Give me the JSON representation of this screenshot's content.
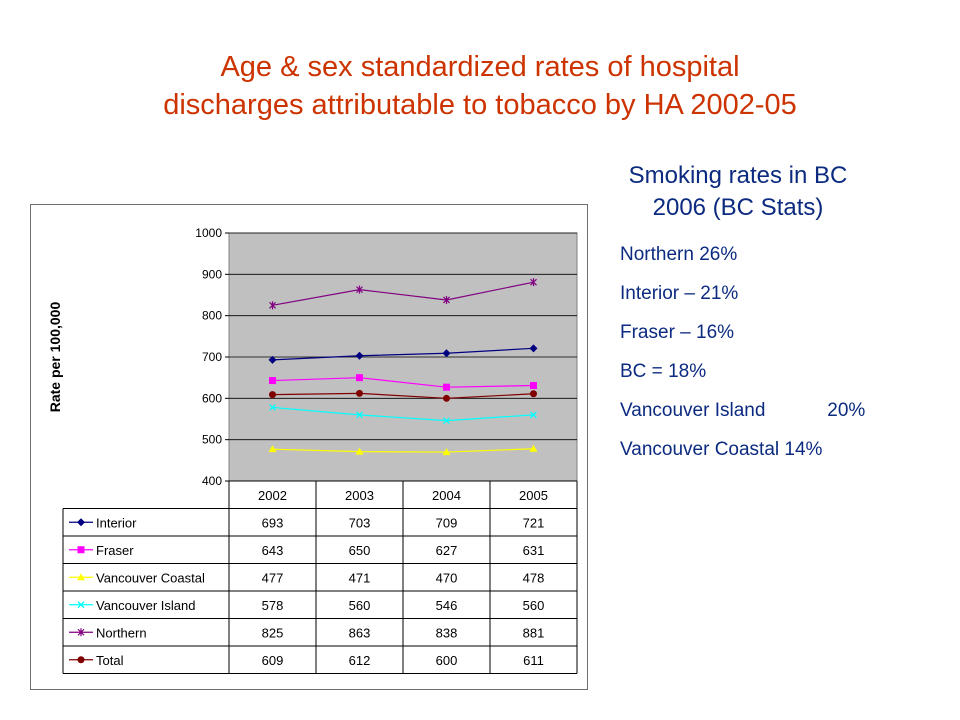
{
  "title": {
    "line1": "Age & sex standardized rates of hospital",
    "line2": "discharges attributable to tobacco by HA 2002-05"
  },
  "side_panel": {
    "heading_line1": "Smoking rates in BC",
    "heading_line2": "2006 (BC Stats)",
    "items": [
      {
        "name": "Northern",
        "value": "26%"
      },
      {
        "name": "Interior –",
        "value": "21%"
      },
      {
        "name": "Fraser –",
        "value": "16%"
      },
      {
        "name": "BC =",
        "value": "18%"
      },
      {
        "name": "Vancouver Island",
        "value": "20%"
      },
      {
        "name": "Vancouver Coastal",
        "value": "14%"
      }
    ]
  },
  "chart_data": {
    "type": "line",
    "title": "",
    "xlabel": "",
    "ylabel": "Rate per 100,000",
    "ylim": [
      400,
      1000
    ],
    "yticks": [
      400,
      500,
      600,
      700,
      800,
      900,
      1000
    ],
    "categories": [
      "2002",
      "2003",
      "2004",
      "2005"
    ],
    "grid": true,
    "legend": "data-table-below",
    "plot_background": "#c0c0c0",
    "series": [
      {
        "name": "Interior",
        "values": [
          693,
          703,
          709,
          721
        ],
        "color": "#000080",
        "marker": "diamond"
      },
      {
        "name": "Fraser",
        "values": [
          643,
          650,
          627,
          631
        ],
        "color": "#ff00ff",
        "marker": "square"
      },
      {
        "name": "Vancouver Coastal",
        "values": [
          477,
          471,
          470,
          478
        ],
        "color": "#ffff00",
        "marker": "triangle"
      },
      {
        "name": "Vancouver Island",
        "values": [
          578,
          560,
          546,
          560
        ],
        "color": "#00ffff",
        "marker": "x"
      },
      {
        "name": "Northern",
        "values": [
          825,
          863,
          838,
          881
        ],
        "color": "#800080",
        "marker": "star"
      },
      {
        "name": "Total",
        "values": [
          609,
          612,
          600,
          611
        ],
        "color": "#800000",
        "marker": "circle"
      }
    ]
  }
}
